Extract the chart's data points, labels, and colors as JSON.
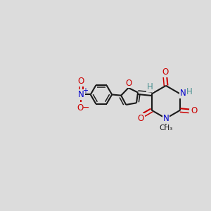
{
  "bg_color": "#dcdcdc",
  "bond_color": "#1a1a1a",
  "O_color": "#cc0000",
  "N_color": "#0000cc",
  "H_color": "#4a9090",
  "figsize": [
    3.0,
    3.0
  ],
  "dpi": 100,
  "xlim": [
    0,
    12
  ],
  "ylim": [
    0,
    10
  ]
}
